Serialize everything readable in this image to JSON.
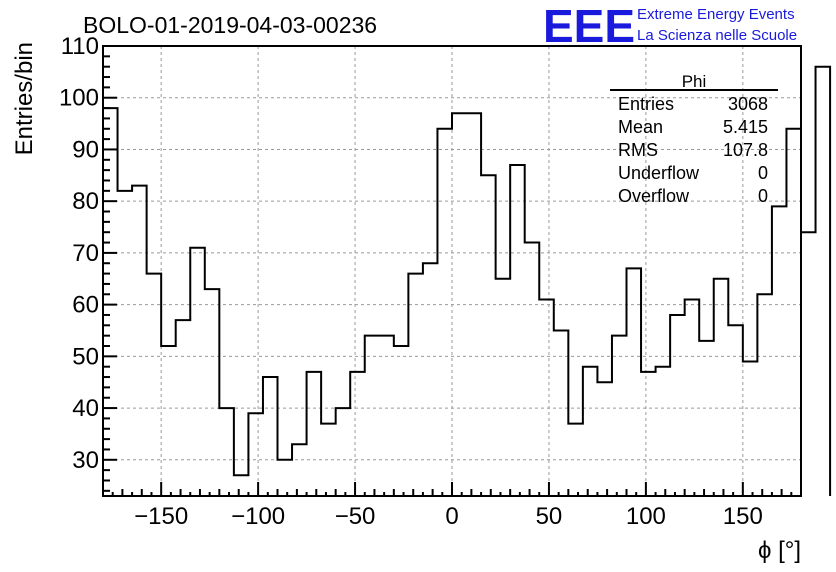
{
  "chart_data": {
    "type": "histogram",
    "title": "BOLO-01-2019-04-03-00236",
    "xlabel": "ϕ [°]",
    "ylabel": "Entries/bin",
    "xlim": [
      -180,
      180
    ],
    "ylim": [
      23,
      110
    ],
    "xticks": [
      -150,
      -100,
      -50,
      0,
      50,
      100,
      150
    ],
    "yticks": [
      30,
      40,
      50,
      60,
      70,
      80,
      90,
      100,
      110
    ],
    "grid": true,
    "bin_width": 7.5,
    "bin_edges_start": -180,
    "values": [
      98,
      82,
      83,
      66,
      52,
      57,
      71,
      63,
      40,
      27,
      39,
      46,
      30,
      33,
      47,
      37,
      40,
      47,
      54,
      54,
      52,
      66,
      68,
      94,
      97,
      97,
      85,
      65,
      87,
      72,
      61,
      55,
      37,
      48,
      45,
      54,
      67,
      47,
      48,
      58,
      61,
      53,
      65,
      56,
      49,
      62,
      79,
      94,
      74,
      106
    ],
    "stats": {
      "name": "Phi",
      "rows": [
        {
          "label": "Entries",
          "value": "3068"
        },
        {
          "label": "Mean",
          "value": "5.415"
        },
        {
          "label": "RMS",
          "value": "107.8"
        },
        {
          "label": "Underflow",
          "value": "0"
        },
        {
          "label": "Overflow",
          "value": "0"
        }
      ]
    }
  },
  "logo": {
    "mark": "EEE",
    "line1": "Extreme Energy Events",
    "line2": "La Scienza nelle Scuole",
    "color": "#1a1adc"
  }
}
